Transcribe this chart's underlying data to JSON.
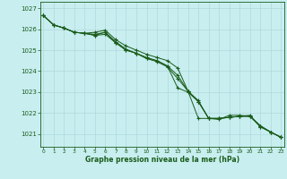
{
  "title": "Graphe pression niveau de la mer (hPa)",
  "background_color": "#c8eef0",
  "grid_color": "#b0d8da",
  "line_color": "#1a5c1a",
  "marker_color": "#1a5c1a",
  "xlim": [
    -0.3,
    23.3
  ],
  "ylim": [
    1020.4,
    1027.3
  ],
  "yticks": [
    1021,
    1022,
    1023,
    1024,
    1025,
    1026,
    1027
  ],
  "xticks": [
    0,
    1,
    2,
    3,
    4,
    5,
    6,
    7,
    8,
    9,
    10,
    11,
    12,
    13,
    14,
    15,
    16,
    17,
    18,
    19,
    20,
    21,
    22,
    23
  ],
  "series": [
    [
      1026.65,
      1026.2,
      1026.05,
      1025.85,
      1025.8,
      1025.85,
      1025.95,
      1025.5,
      1025.2,
      1025.0,
      1024.8,
      1024.65,
      1024.5,
      1024.15,
      1023.05,
      1021.75,
      1021.75,
      1021.7,
      1021.9,
      1021.9,
      1021.85,
      1021.4,
      1021.1,
      1020.85
    ],
    [
      1026.65,
      1026.2,
      1026.05,
      1025.85,
      1025.8,
      1025.75,
      1025.85,
      1025.4,
      1025.05,
      1024.85,
      1024.65,
      1024.5,
      1024.25,
      1023.8,
      1023.05,
      1022.6,
      1021.75,
      1021.75,
      1021.8,
      1021.85,
      1021.85,
      1021.4,
      1021.1,
      1020.85
    ],
    [
      1026.65,
      1026.2,
      1026.05,
      1025.85,
      1025.8,
      1025.7,
      1025.85,
      1025.35,
      1025.0,
      1024.85,
      1024.6,
      1024.45,
      1024.2,
      1023.65,
      1023.05,
      1022.55,
      1021.75,
      1021.75,
      1021.8,
      1021.85,
      1021.85,
      1021.35,
      1021.1,
      1020.85
    ],
    [
      1026.65,
      1026.2,
      1026.05,
      1025.85,
      1025.8,
      1025.7,
      1025.75,
      1025.35,
      1025.0,
      1024.85,
      1024.6,
      1024.5,
      1024.25,
      1023.2,
      1023.0,
      1022.55,
      1021.75,
      1021.75,
      1021.8,
      1021.85,
      1021.9,
      1021.35,
      1021.1,
      1020.85
    ]
  ]
}
